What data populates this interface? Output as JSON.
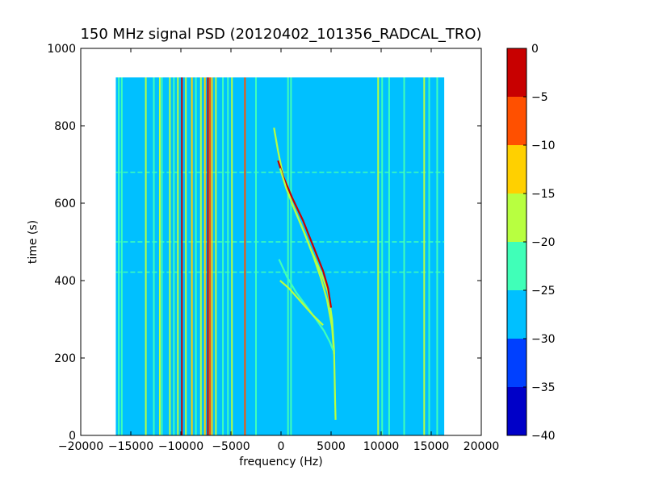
{
  "chart_data": {
    "type": "heatmap",
    "title": "150 MHz signal PSD (20120402_101356_RADCAL_TRO)",
    "xlabel": "frequency (Hz)",
    "ylabel": "time (s)",
    "xlim": [
      -20000,
      20000
    ],
    "ylim": [
      0,
      1000
    ],
    "x_ticks": [
      -20000,
      -15000,
      -10000,
      -5000,
      0,
      5000,
      10000,
      15000,
      20000
    ],
    "x_tick_labels": [
      "−20000",
      "−15000",
      "−10000",
      "−5000",
      "0",
      "5000",
      "10000",
      "15000",
      "20000"
    ],
    "y_ticks": [
      0,
      200,
      400,
      600,
      800,
      1000
    ],
    "y_tick_labels": [
      "0",
      "200",
      "400",
      "600",
      "800",
      "1000"
    ],
    "data_extent": {
      "x": [
        -16500,
        16300
      ],
      "y": [
        0,
        925
      ]
    },
    "background_level": -27.5,
    "colorbar": {
      "min": -40,
      "max": 0,
      "tick_values": [
        0,
        -5,
        -10,
        -15,
        -20,
        -25,
        -30,
        -35,
        -40
      ],
      "tick_labels": [
        "0",
        "−5",
        "−10",
        "−15",
        "−20",
        "−25",
        "−30",
        "−35",
        "−40"
      ],
      "levels": [
        {
          "from": -40,
          "to": -35,
          "color": "#0000c8"
        },
        {
          "from": -35,
          "to": -30,
          "color": "#0040ff"
        },
        {
          "from": -30,
          "to": -25,
          "color": "#00c0ff"
        },
        {
          "from": -25,
          "to": -20,
          "color": "#40ffb8"
        },
        {
          "from": -20,
          "to": -15,
          "color": "#b8ff40"
        },
        {
          "from": -15,
          "to": -10,
          "color": "#ffd000"
        },
        {
          "from": -10,
          "to": -5,
          "color": "#ff5000"
        },
        {
          "from": -5,
          "to": 0,
          "color": "#c80000"
        }
      ]
    },
    "vertical_lines": [
      {
        "freq": -16200,
        "level": -22.5
      },
      {
        "freq": -15900,
        "level": -22.5
      },
      {
        "freq": -13500,
        "level": -17.5
      },
      {
        "freq": -12700,
        "level": -22.5
      },
      {
        "freq": -12100,
        "level": -17.5
      },
      {
        "freq": -11900,
        "level": -22.5
      },
      {
        "freq": -11100,
        "level": -17.5
      },
      {
        "freq": -10700,
        "level": -22.5
      },
      {
        "freq": -10300,
        "level": -17.5
      },
      {
        "freq": -9900,
        "level": -2.5
      },
      {
        "freq": -9500,
        "level": -17.5
      },
      {
        "freq": -8900,
        "level": -12.5
      },
      {
        "freq": -8500,
        "level": -22.5
      },
      {
        "freq": -8000,
        "level": -17.5
      },
      {
        "freq": -7600,
        "level": -12.5
      },
      {
        "freq": -7300,
        "level": -2.5
      },
      {
        "freq": -7100,
        "level": -7.5
      },
      {
        "freq": -6900,
        "level": -12.5
      },
      {
        "freq": -6500,
        "level": -17.5
      },
      {
        "freq": -5800,
        "level": -22.5
      },
      {
        "freq": -5300,
        "level": -22.5
      },
      {
        "freq": -4900,
        "level": -17.5
      },
      {
        "freq": -3600,
        "level": -7.5
      },
      {
        "freq": -2500,
        "level": -22.5
      },
      {
        "freq": 700,
        "level": -22.5
      },
      {
        "freq": 1000,
        "level": -22.5
      },
      {
        "freq": 9700,
        "level": -17.5
      },
      {
        "freq": 10100,
        "level": -22.5
      },
      {
        "freq": 10800,
        "level": -22.5
      },
      {
        "freq": 12300,
        "level": -22.5
      },
      {
        "freq": 14300,
        "level": -17.5
      },
      {
        "freq": 14800,
        "level": -22.5
      },
      {
        "freq": 15600,
        "level": -22.5
      }
    ],
    "horizontal_lines": [
      {
        "time": 500,
        "level": -22.5
      },
      {
        "time": 422,
        "level": -22.5
      },
      {
        "time": 680,
        "level": -22.5
      }
    ],
    "curves": [
      {
        "level": -17.5,
        "points": [
          [
            -700,
            795
          ],
          [
            -300,
            735
          ],
          [
            300,
            660
          ],
          [
            1100,
            600
          ],
          [
            2000,
            545
          ],
          [
            3000,
            480
          ],
          [
            4000,
            420
          ],
          [
            4700,
            370
          ],
          [
            5100,
            300
          ],
          [
            5300,
            220
          ],
          [
            5400,
            90
          ],
          [
            5450,
            40
          ]
        ]
      },
      {
        "level": -2.5,
        "points": [
          [
            -300,
            710
          ],
          [
            200,
            670
          ],
          [
            1100,
            615
          ],
          [
            2200,
            555
          ],
          [
            3200,
            490
          ],
          [
            4200,
            425
          ],
          [
            4700,
            380
          ],
          [
            5000,
            330
          ]
        ]
      },
      {
        "level": -17.5,
        "points": [
          [
            -100,
            690
          ],
          [
            500,
            640
          ],
          [
            1400,
            580
          ],
          [
            2300,
            525
          ],
          [
            3200,
            465
          ],
          [
            4000,
            405
          ],
          [
            4600,
            350
          ],
          [
            5100,
            280
          ],
          [
            5300,
            210
          ]
        ]
      },
      {
        "level": -22.5,
        "points": [
          [
            -200,
            455
          ],
          [
            600,
            410
          ],
          [
            1500,
            370
          ],
          [
            2500,
            335
          ],
          [
            3500,
            300
          ],
          [
            4300,
            270
          ],
          [
            4900,
            240
          ],
          [
            5200,
            220
          ]
        ]
      },
      {
        "level": -17.5,
        "points": [
          [
            -100,
            400
          ],
          [
            800,
            380
          ],
          [
            2000,
            345
          ],
          [
            3200,
            310
          ],
          [
            4200,
            285
          ]
        ]
      }
    ]
  }
}
